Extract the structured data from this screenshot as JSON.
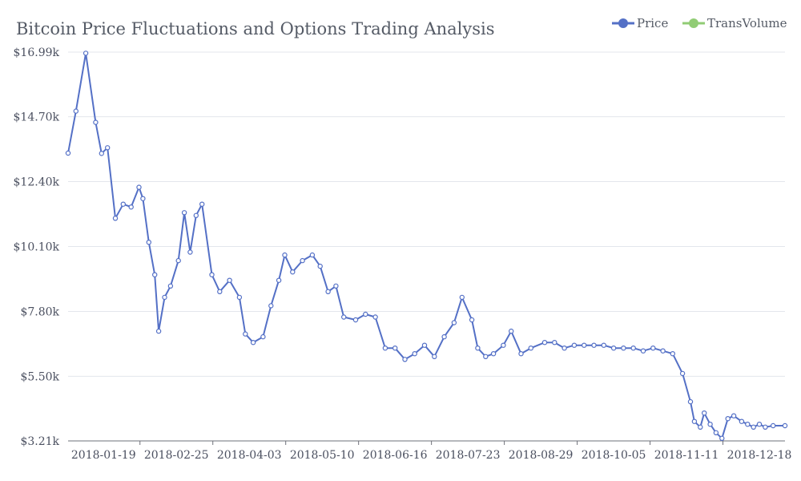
{
  "chart_data": {
    "type": "line",
    "title": "Bitcoin Price Fluctuations and Options Trading Analysis",
    "legend": {
      "placement": "top-right",
      "items": [
        {
          "name": "Price",
          "color": "#5470c6"
        },
        {
          "name": "TransVolume",
          "color": "#91cc75"
        }
      ]
    },
    "y_axis": {
      "ticks": [
        3.21,
        5.5,
        7.8,
        10.1,
        12.4,
        14.7,
        16.99
      ],
      "tick_labels": [
        "$3.21k",
        "$5.50k",
        "$7.80k",
        "$10.10k",
        "$12.40k",
        "$14.70k",
        "$16.99k"
      ],
      "ylim": [
        3.21,
        16.99
      ],
      "unit": "thousand USD",
      "grid": true
    },
    "x_axis": {
      "tick_labels": [
        "2018-01-19",
        "2018-02-25",
        "2018-04-03",
        "2018-05-10",
        "2018-06-16",
        "2018-07-23",
        "2018-08-29",
        "2018-10-05",
        "2018-11-11",
        "2018-12-18"
      ],
      "start_date": "2018-01-01",
      "end_date": "2018-12-31"
    },
    "series": [
      {
        "name": "Price",
        "color": "#5470c6",
        "x": [
          "2018-01-01",
          "2018-01-05",
          "2018-01-10",
          "2018-01-15",
          "2018-01-18",
          "2018-01-21",
          "2018-01-25",
          "2018-01-29",
          "2018-02-02",
          "2018-02-06",
          "2018-02-08",
          "2018-02-11",
          "2018-02-14",
          "2018-02-16",
          "2018-02-19",
          "2018-02-22",
          "2018-02-26",
          "2018-03-01",
          "2018-03-04",
          "2018-03-07",
          "2018-03-10",
          "2018-03-15",
          "2018-03-19",
          "2018-03-24",
          "2018-03-29",
          "2018-04-01",
          "2018-04-05",
          "2018-04-10",
          "2018-04-14",
          "2018-04-18",
          "2018-04-21",
          "2018-04-25",
          "2018-04-30",
          "2018-05-05",
          "2018-05-09",
          "2018-05-13",
          "2018-05-17",
          "2018-05-21",
          "2018-05-27",
          "2018-06-01",
          "2018-06-06",
          "2018-06-11",
          "2018-06-16",
          "2018-06-21",
          "2018-06-26",
          "2018-07-01",
          "2018-07-06",
          "2018-07-11",
          "2018-07-16",
          "2018-07-20",
          "2018-07-25",
          "2018-07-28",
          "2018-08-01",
          "2018-08-05",
          "2018-08-10",
          "2018-08-14",
          "2018-08-19",
          "2018-08-24",
          "2018-08-31",
          "2018-09-05",
          "2018-09-10",
          "2018-09-15",
          "2018-09-20",
          "2018-09-25",
          "2018-09-30",
          "2018-10-05",
          "2018-10-10",
          "2018-10-15",
          "2018-10-20",
          "2018-10-25",
          "2018-10-30",
          "2018-11-04",
          "2018-11-09",
          "2018-11-13",
          "2018-11-15",
          "2018-11-18",
          "2018-11-20",
          "2018-11-23",
          "2018-11-26",
          "2018-11-29",
          "2018-12-02",
          "2018-12-05",
          "2018-12-09",
          "2018-12-12",
          "2018-12-15",
          "2018-12-18",
          "2018-12-21",
          "2018-12-25",
          "2018-12-31"
        ],
        "values": [
          13.41,
          14.9,
          16.95,
          14.5,
          13.4,
          13.6,
          11.1,
          11.6,
          11.5,
          12.2,
          11.8,
          10.25,
          9.1,
          7.1,
          8.3,
          8.7,
          9.6,
          11.3,
          9.9,
          11.2,
          11.6,
          9.1,
          8.5,
          8.9,
          8.3,
          7.0,
          6.7,
          6.9,
          8.0,
          8.9,
          9.8,
          9.2,
          9.6,
          9.8,
          9.4,
          8.5,
          8.7,
          7.6,
          7.5,
          7.7,
          7.6,
          6.5,
          6.5,
          6.1,
          6.3,
          6.6,
          6.2,
          6.9,
          7.4,
          8.3,
          7.5,
          6.5,
          6.2,
          6.3,
          6.6,
          7.1,
          6.3,
          6.5,
          6.7,
          6.7,
          6.5,
          6.6,
          6.6,
          6.6,
          6.6,
          6.5,
          6.5,
          6.5,
          6.4,
          6.5,
          6.4,
          6.3,
          5.6,
          4.6,
          3.9,
          3.7,
          4.2,
          3.8,
          3.5,
          3.3,
          4.0,
          4.1,
          3.9,
          3.8,
          3.7,
          3.8,
          3.7,
          3.75,
          3.75
        ]
      },
      {
        "name": "TransVolume",
        "color": "#91cc75",
        "x": [],
        "values": []
      }
    ]
  }
}
